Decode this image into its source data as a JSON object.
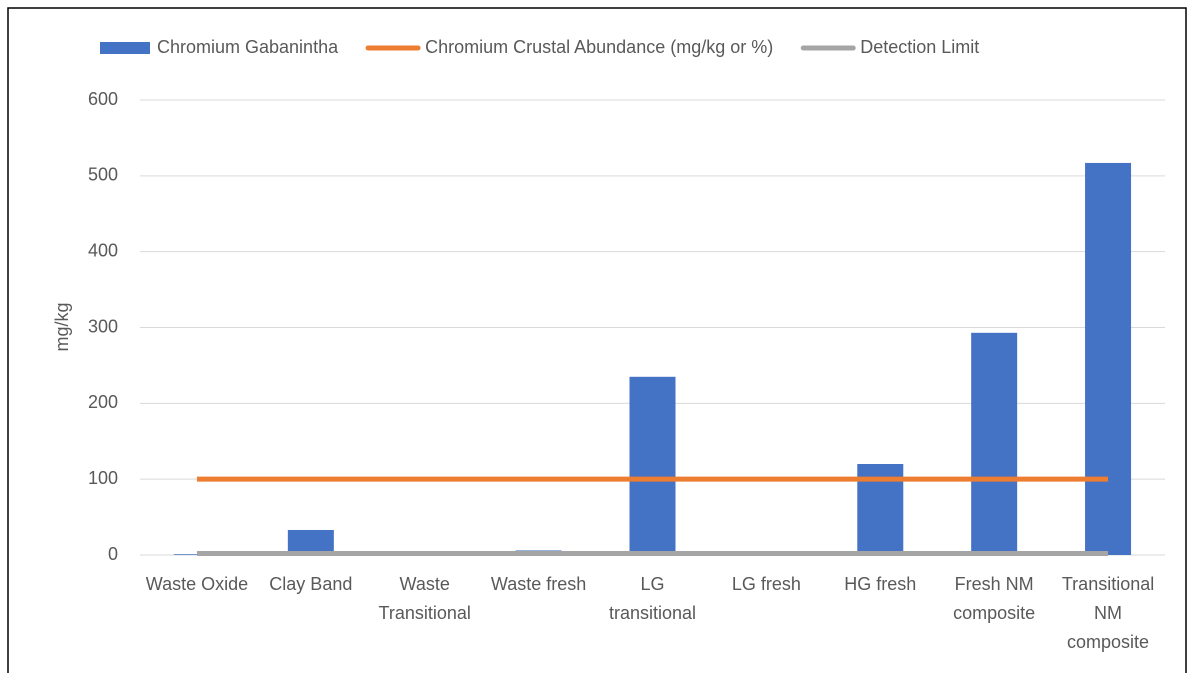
{
  "chart_data": {
    "type": "bar",
    "categories": [
      "Waste Oxide",
      "Clay Band",
      "Waste Transitional",
      "Waste fresh",
      "LG transitional",
      "LG fresh",
      "HG fresh",
      "Fresh NM composite",
      "Transitional NM composite"
    ],
    "series": [
      {
        "name": "Chromium Gabanintha",
        "type": "bar",
        "color": "#4472c4",
        "values": [
          1,
          33,
          1,
          6,
          235,
          1,
          120,
          293,
          517
        ]
      },
      {
        "name": "Chromium Crustal Abundance (mg/kg or %)",
        "type": "line",
        "color": "#ed7d31",
        "values": [
          100,
          100,
          100,
          100,
          100,
          100,
          100,
          100,
          100
        ]
      },
      {
        "name": "Detection Limit",
        "type": "line",
        "color": "#a5a5a5",
        "values": [
          2,
          2,
          2,
          2,
          2,
          2,
          2,
          2,
          2
        ]
      }
    ],
    "y_label": "mg/kg",
    "ylim": [
      0,
      600
    ],
    "yticks": [
      0,
      100,
      200,
      300,
      400,
      500,
      600
    ],
    "grid": true,
    "legend": "top"
  }
}
